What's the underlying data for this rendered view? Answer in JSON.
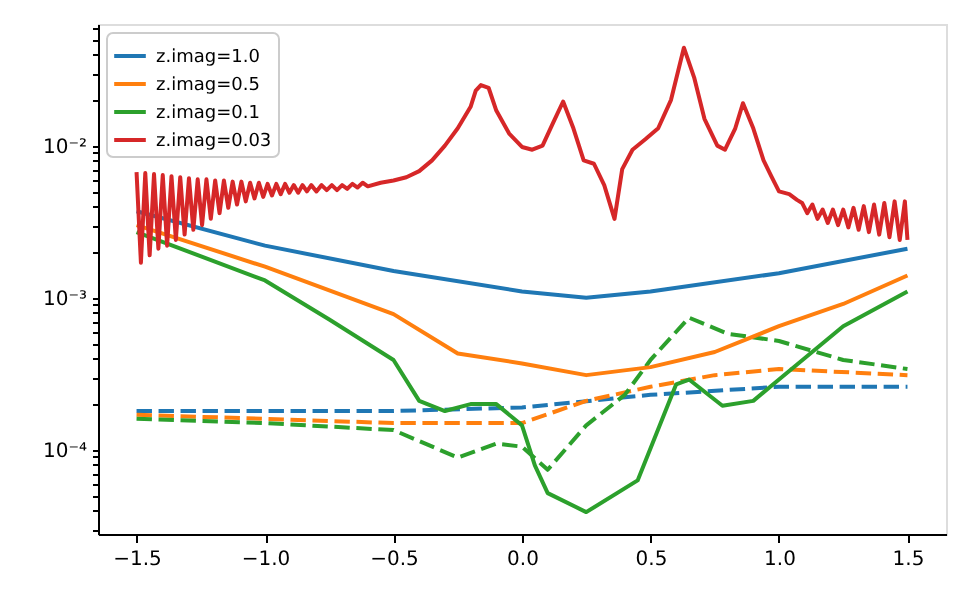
{
  "chart_data": {
    "type": "line",
    "log": "y",
    "grid": false,
    "legend": "top left",
    "xlim": [
      -1.65,
      1.65
    ],
    "ylim": [
      2.8e-05,
      0.063
    ],
    "xticks": [
      {
        "value": -1.5,
        "label": "−1.5"
      },
      {
        "value": -1.0,
        "label": "−1.0"
      },
      {
        "value": -0.5,
        "label": "−0.5"
      },
      {
        "value": 0.0,
        "label": "0.0"
      },
      {
        "value": 0.5,
        "label": "0.5"
      },
      {
        "value": 1.0,
        "label": "1.0"
      },
      {
        "value": 1.5,
        "label": "1.5"
      }
    ],
    "yticks": [
      {
        "value": 3e-05,
        "label": null
      },
      {
        "value": 4e-05,
        "label": null
      },
      {
        "value": 5e-05,
        "label": null
      },
      {
        "value": 6e-05,
        "label": null
      },
      {
        "value": 7e-05,
        "label": null
      },
      {
        "value": 8e-05,
        "label": null
      },
      {
        "value": 9e-05,
        "label": null
      },
      {
        "value": 0.0001,
        "label": "10⁻⁴"
      },
      {
        "value": 0.0002,
        "label": null
      },
      {
        "value": 0.0003,
        "label": null
      },
      {
        "value": 0.0004,
        "label": null
      },
      {
        "value": 0.0005,
        "label": null
      },
      {
        "value": 0.0006,
        "label": null
      },
      {
        "value": 0.0007,
        "label": null
      },
      {
        "value": 0.0008,
        "label": null
      },
      {
        "value": 0.0009,
        "label": null
      },
      {
        "value": 0.001,
        "label": "10⁻³"
      },
      {
        "value": 0.002,
        "label": null
      },
      {
        "value": 0.003,
        "label": null
      },
      {
        "value": 0.004,
        "label": null
      },
      {
        "value": 0.005,
        "label": null
      },
      {
        "value": 0.006,
        "label": null
      },
      {
        "value": 0.007,
        "label": null
      },
      {
        "value": 0.008,
        "label": null
      },
      {
        "value": 0.009,
        "label": null
      },
      {
        "value": 0.01,
        "label": "10⁻²"
      },
      {
        "value": 0.02,
        "label": null
      },
      {
        "value": 0.03,
        "label": null
      },
      {
        "value": 0.04,
        "label": null
      },
      {
        "value": 0.05,
        "label": null
      },
      {
        "value": 0.06,
        "label": null
      }
    ],
    "series": [
      {
        "color": "#1f77b4",
        "line_style": "dashed",
        "x": [
          -1.5,
          -1.0,
          -0.5,
          0.0,
          0.5,
          1.0,
          1.5
        ],
        "values": [
          0.00018,
          0.00018,
          0.00018,
          0.00019,
          0.00023,
          0.00026,
          0.00026
        ]
      },
      {
        "color": "#ff7f0e",
        "line_style": "dashed",
        "x": [
          -1.5,
          -1.0,
          -0.5,
          0.0,
          0.25,
          0.5,
          0.75,
          1.0,
          1.5
        ],
        "values": [
          0.00017,
          0.00016,
          0.00015,
          0.00015,
          0.00021,
          0.00026,
          0.00031,
          0.00034,
          0.00031
        ]
      },
      {
        "color": "#2ca02c",
        "line_style": "dashed",
        "x": [
          -1.5,
          -1.0,
          -0.5,
          -0.25,
          -0.1,
          0.0,
          0.1,
          0.25,
          0.4,
          0.5,
          0.65,
          0.8,
          1.0,
          1.25,
          1.5
        ],
        "values": [
          0.00016,
          0.00015,
          0.000135,
          8.9e-05,
          0.00011,
          0.000105,
          7.4e-05,
          0.000145,
          0.00023,
          0.00039,
          0.00074,
          0.00058,
          0.00052,
          0.00039,
          0.00034
        ]
      },
      {
        "name": "z.imag=1.0",
        "color": "#1f77b4",
        "line_style": "solid",
        "x": [
          -1.5,
          -1.0,
          -0.5,
          0.0,
          0.25,
          0.5,
          1.0,
          1.5
        ],
        "values": [
          0.0037,
          0.0022,
          0.0015,
          0.0011,
          0.001,
          0.0011,
          0.00145,
          0.0021
        ]
      },
      {
        "name": "z.imag=0.5",
        "color": "#ff7f0e",
        "line_style": "solid",
        "x": [
          -1.5,
          -1.0,
          -0.5,
          -0.25,
          0.0,
          0.25,
          0.5,
          0.75,
          1.0,
          1.25,
          1.5
        ],
        "values": [
          0.003,
          0.0016,
          0.00078,
          0.00043,
          0.00037,
          0.00031,
          0.00035,
          0.00044,
          0.00065,
          0.00091,
          0.0014
        ]
      },
      {
        "name": "z.imag=0.1",
        "color": "#2ca02c",
        "line_style": "solid",
        "x": [
          -1.5,
          -1.0,
          -0.75,
          -0.5,
          -0.4,
          -0.3,
          -0.2,
          -0.1,
          0.0,
          0.05,
          0.1,
          0.25,
          0.45,
          0.6,
          0.65,
          0.78,
          0.9,
          1.0,
          1.25,
          1.5
        ],
        "values": [
          0.0027,
          0.0013,
          0.00072,
          0.00039,
          0.00021,
          0.00018,
          0.0002,
          0.0002,
          0.000145,
          7.9e-05,
          5.2e-05,
          3.9e-05,
          6.3e-05,
          0.00027,
          0.00029,
          0.000195,
          0.00021,
          0.00029,
          0.00065,
          0.0011
        ]
      },
      {
        "name": "z.imag=0.03",
        "color": "#d62728",
        "line_style": "solid",
        "x": [
          -1.5,
          -1.483,
          -1.466,
          -1.449,
          -1.432,
          -1.415,
          -1.398,
          -1.381,
          -1.364,
          -1.347,
          -1.33,
          -1.313,
          -1.296,
          -1.279,
          -1.262,
          -1.245,
          -1.228,
          -1.211,
          -1.194,
          -1.177,
          -1.16,
          -1.143,
          -1.126,
          -1.109,
          -1.092,
          -1.075,
          -1.058,
          -1.041,
          -1.024,
          -1.007,
          -0.99,
          -0.973,
          -0.956,
          -0.939,
          -0.922,
          -0.905,
          -0.888,
          -0.871,
          -0.854,
          -0.837,
          -0.82,
          -0.8,
          -0.78,
          -0.76,
          -0.74,
          -0.72,
          -0.7,
          -0.68,
          -0.66,
          -0.64,
          -0.62,
          -0.6,
          -0.55,
          -0.5,
          -0.45,
          -0.4,
          -0.35,
          -0.3,
          -0.25,
          -0.2,
          -0.18,
          -0.16,
          -0.13,
          -0.1,
          -0.05,
          0.0,
          0.04,
          0.08,
          0.12,
          0.16,
          0.2,
          0.24,
          0.28,
          0.32,
          0.36,
          0.39,
          0.43,
          0.48,
          0.53,
          0.58,
          0.63,
          0.67,
          0.71,
          0.76,
          0.79,
          0.83,
          0.86,
          0.9,
          0.94,
          0.97,
          1.0,
          1.04,
          1.07,
          1.09,
          1.11,
          1.13,
          1.15,
          1.17,
          1.19,
          1.21,
          1.23,
          1.25,
          1.27,
          1.29,
          1.31,
          1.33,
          1.35,
          1.37,
          1.39,
          1.41,
          1.43,
          1.45,
          1.47,
          1.49,
          1.5
        ],
        "values": [
          0.0067,
          0.0017,
          0.0066,
          0.0019,
          0.0065,
          0.0021,
          0.0064,
          0.0022,
          0.0063,
          0.0024,
          0.0062,
          0.0026,
          0.0061,
          0.0028,
          0.006,
          0.003,
          0.006,
          0.0033,
          0.0059,
          0.0036,
          0.0059,
          0.0039,
          0.0058,
          0.0041,
          0.0058,
          0.0043,
          0.0057,
          0.0045,
          0.0057,
          0.0046,
          0.0056,
          0.0047,
          0.0056,
          0.0048,
          0.0056,
          0.0049,
          0.0055,
          0.0049,
          0.0055,
          0.005,
          0.0055,
          0.005,
          0.0055,
          0.0051,
          0.0055,
          0.0051,
          0.0055,
          0.0052,
          0.0056,
          0.0053,
          0.0057,
          0.0054,
          0.0057,
          0.0059,
          0.0062,
          0.0068,
          0.008,
          0.01,
          0.013,
          0.018,
          0.023,
          0.025,
          0.024,
          0.017,
          0.012,
          0.0098,
          0.0094,
          0.01,
          0.014,
          0.0195,
          0.013,
          0.008,
          0.0076,
          0.0055,
          0.0033,
          0.007,
          0.0094,
          0.011,
          0.013,
          0.02,
          0.044,
          0.028,
          0.015,
          0.01,
          0.0094,
          0.013,
          0.019,
          0.013,
          0.008,
          0.0063,
          0.005,
          0.0048,
          0.0044,
          0.0042,
          0.0036,
          0.0041,
          0.0033,
          0.0038,
          0.0031,
          0.0038,
          0.003,
          0.0038,
          0.0029,
          0.0039,
          0.0028,
          0.004,
          0.0027,
          0.0041,
          0.0026,
          0.0042,
          0.0025,
          0.0043,
          0.0024,
          0.0043,
          0.0024
        ]
      }
    ]
  }
}
